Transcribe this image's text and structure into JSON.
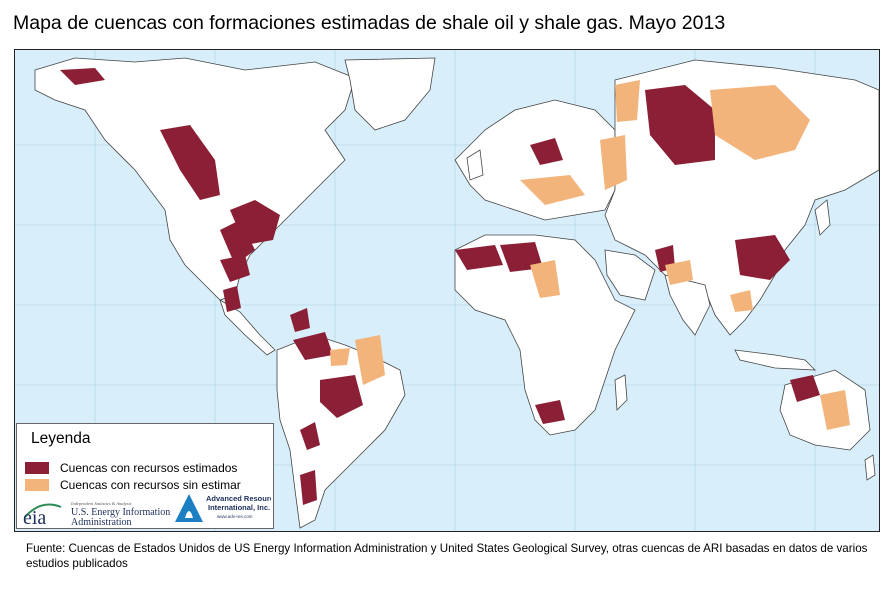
{
  "title": "Mapa de cuencas con formaciones estimadas de shale oil y shale gas. Mayo 2013",
  "legend": {
    "title": "Leyenda",
    "items": [
      {
        "label": "Cuencas con recursos estimados",
        "color": "#8b1f35"
      },
      {
        "label": "Cuencas con recursos sin estimar",
        "color": "#f2b47a"
      }
    ]
  },
  "logos": {
    "eia": {
      "mark": "eia",
      "tagline": "Independent Statistics & Analysis",
      "name_line1": "U.S. Energy Information",
      "name_line2": "Administration"
    },
    "ari": {
      "name_line1": "Advanced Resources",
      "name_line2": "International, Inc.",
      "url": "www.adv-res.com"
    }
  },
  "source": "Fuente: Cuencas de Estados Unidos de US Energy Information Administration y United States Geological Survey, otras cuencas de ARI basadas en datos de varios estudios publicados",
  "colors": {
    "ocean": "#d8effb",
    "land": "#ffffff",
    "borders": "#444444",
    "estimated": "#8b1f35",
    "unestimated": "#f2b47a"
  }
}
